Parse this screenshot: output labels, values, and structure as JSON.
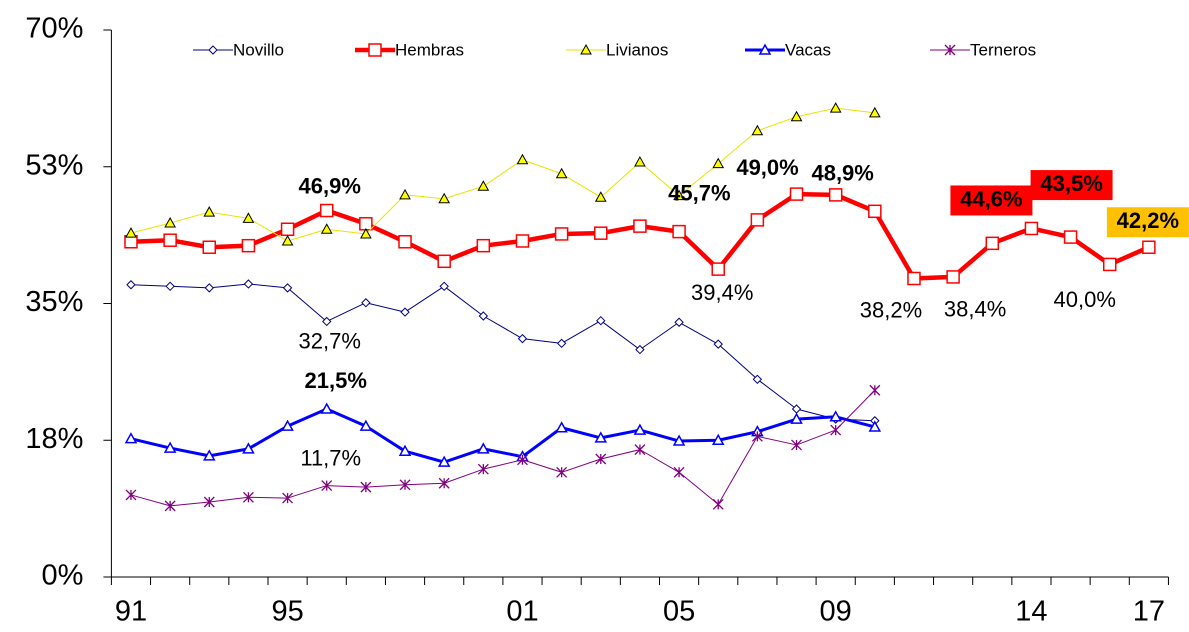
{
  "chart_data": {
    "type": "line",
    "categories": [
      "91",
      null,
      null,
      null,
      "95",
      null,
      null,
      null,
      null,
      null,
      "01",
      null,
      null,
      null,
      "05",
      null,
      null,
      null,
      "09",
      null,
      null,
      null,
      null,
      "14",
      null,
      null,
      "17"
    ],
    "ylim": [
      0,
      70
    ],
    "yticks": [
      {
        "value": 0,
        "label": "0%"
      },
      {
        "value": 17.5,
        "label": "18%"
      },
      {
        "value": 35,
        "label": "35%"
      },
      {
        "value": 52.5,
        "label": "53%"
      },
      {
        "value": 70,
        "label": "70%"
      }
    ],
    "grid": false,
    "legend": "top",
    "series": [
      {
        "name": "Novillo",
        "color": "#000080",
        "marker": "diamond",
        "values": [
          37.4,
          37.2,
          37.0,
          37.5,
          37.0,
          32.7,
          35.1,
          33.9,
          37.2,
          33.4,
          30.5,
          29.9,
          32.8,
          29.1,
          32.6,
          29.8,
          25.3,
          21.5,
          20.2,
          20.0,
          null,
          null,
          null,
          null,
          null,
          null,
          null
        ],
        "value_labels": [
          null,
          null,
          null,
          null,
          null,
          "32,7%",
          null,
          null,
          null,
          null,
          null,
          null,
          null,
          null,
          null,
          null,
          null,
          null,
          null,
          null,
          null,
          null,
          null,
          null,
          null,
          null,
          null
        ]
      },
      {
        "name": "Hembras",
        "color": "#ff0000",
        "marker": "square",
        "values": [
          42.9,
          43.1,
          42.2,
          42.4,
          44.5,
          46.9,
          45.2,
          42.9,
          40.4,
          42.4,
          43.0,
          43.9,
          44.0,
          44.9,
          44.2,
          39.4,
          45.7,
          49.0,
          48.9,
          46.8,
          38.2,
          38.4,
          42.7,
          44.6,
          43.5,
          40.0,
          42.2
        ],
        "value_labels": [
          null,
          null,
          null,
          null,
          null,
          "46,9%",
          null,
          null,
          null,
          null,
          null,
          null,
          null,
          null,
          null,
          "39,4%",
          "45,7%",
          "49,0%",
          "48,9%",
          null,
          "38,2%",
          "38,4%",
          null,
          "44,6%",
          "43,5%",
          "40,0%",
          "42,2%"
        ]
      },
      {
        "name": "Livianos",
        "color": "#ffff00",
        "marker": "triangle",
        "values": [
          44.0,
          45.3,
          46.7,
          45.9,
          43.0,
          44.5,
          43.9,
          48.9,
          48.4,
          50.0,
          53.4,
          51.6,
          48.6,
          53.1,
          48.8,
          52.9,
          57.1,
          58.9,
          60.0,
          59.4,
          null,
          null,
          null,
          null,
          null,
          null,
          null
        ]
      },
      {
        "name": "Vacas",
        "color": "#0000ff",
        "marker": "triangle-open",
        "values": [
          17.7,
          16.5,
          15.5,
          16.4,
          19.3,
          21.5,
          19.3,
          16.1,
          14.7,
          16.4,
          15.4,
          19.1,
          17.8,
          18.8,
          17.4,
          17.5,
          18.6,
          20.2,
          20.5,
          19.2,
          null,
          null,
          null,
          null,
          null,
          null,
          null
        ],
        "value_labels": [
          null,
          null,
          null,
          null,
          null,
          "21,5%",
          null,
          null,
          null,
          null,
          null,
          null,
          null,
          null,
          null,
          null,
          null,
          null,
          null,
          null,
          null,
          null,
          null,
          null,
          null,
          null,
          null
        ]
      },
      {
        "name": "Terneros",
        "color": "#800080",
        "marker": "star",
        "values": [
          10.5,
          9.1,
          9.6,
          10.2,
          10.1,
          11.7,
          11.5,
          11.8,
          12.0,
          13.8,
          15.0,
          13.4,
          15.1,
          16.3,
          13.4,
          9.3,
          18.0,
          16.9,
          18.8,
          23.9,
          null,
          null,
          null,
          null,
          null,
          null,
          null
        ],
        "value_labels": [
          null,
          null,
          null,
          null,
          null,
          "11,7%",
          null,
          null,
          null,
          null,
          null,
          null,
          null,
          null,
          null,
          null,
          null,
          null,
          null,
          null,
          null,
          null,
          null,
          null,
          null,
          null,
          null
        ]
      }
    ]
  }
}
